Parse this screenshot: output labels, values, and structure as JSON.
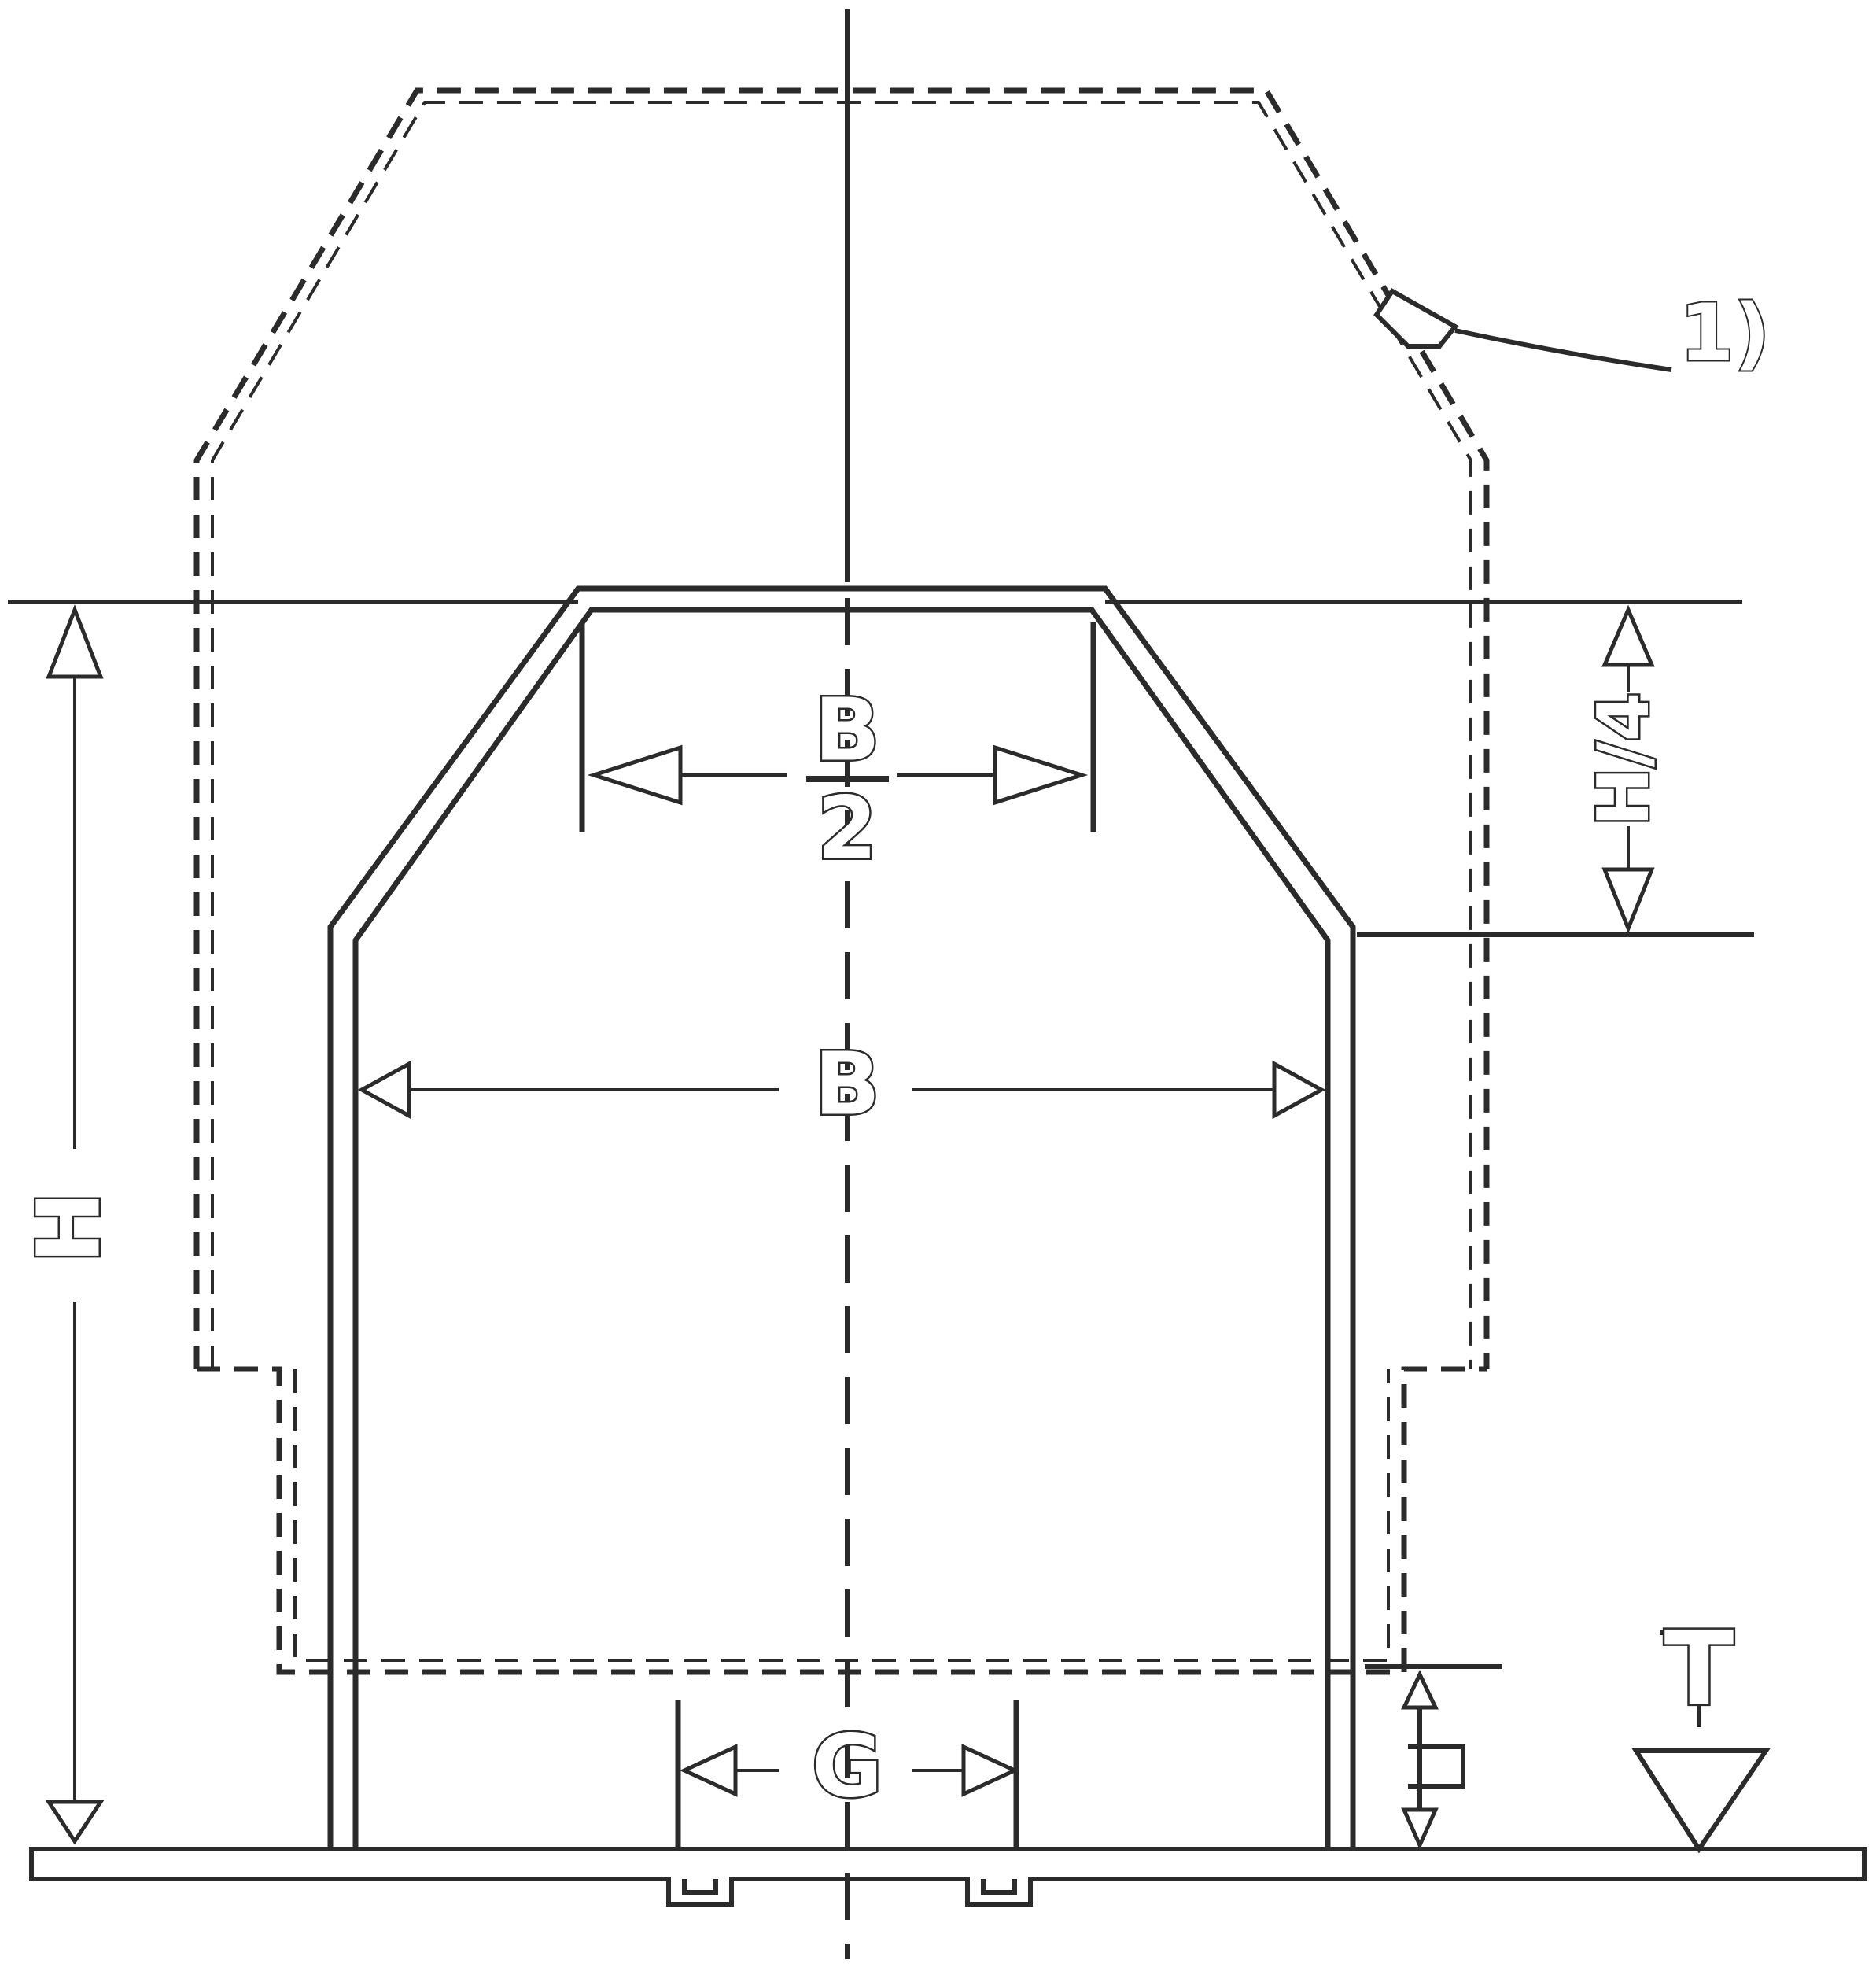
{
  "labels": {
    "b_half_num": "B",
    "b_half_den": "2",
    "b": "B",
    "h": "H",
    "h_quarter": "H/4",
    "g": "G",
    "t": "T",
    "note": "1)"
  },
  "colors": {
    "line": "#2b2b2b",
    "fill": "#ffffff"
  }
}
